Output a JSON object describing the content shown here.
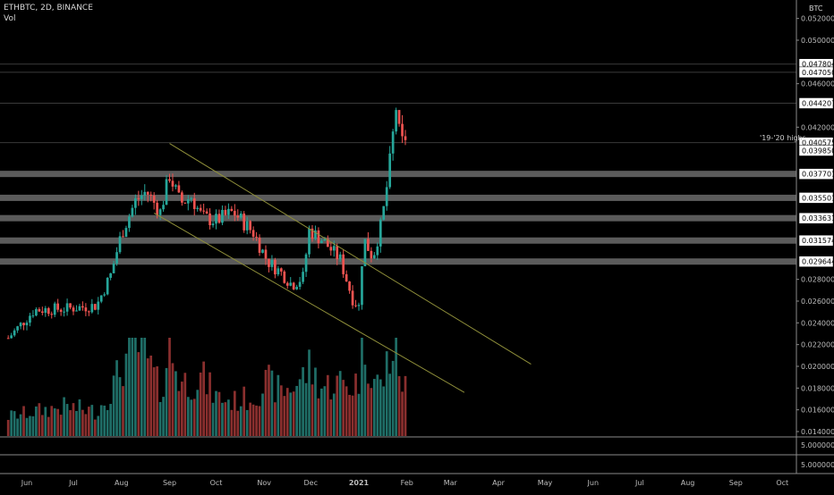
{
  "header": {
    "symbol_line": "ETHBTC, 2D, BINANCE",
    "volume_label": "Vol"
  },
  "colors": {
    "up": "#26a69a",
    "down": "#ef5350",
    "channel": "#8f8f3a",
    "level_band": "#6b6b6b",
    "background": "#000000"
  },
  "price_axis": {
    "currency": "BTC",
    "ticks": [
      "0.05200000",
      "0.05000000",
      "0.04600000",
      "0.04200000",
      "0.02800000",
      "0.02600000",
      "0.02400000",
      "0.02200000",
      "0.02000000",
      "0.01800000",
      "0.01600000",
      "0.01400000"
    ],
    "tick_values": [
      0.052,
      0.05,
      0.046,
      0.042,
      0.028,
      0.026,
      0.024,
      0.022,
      0.02,
      0.018,
      0.016,
      0.014
    ],
    "boxed_levels": [
      "0.04780400",
      "0.04705000",
      "0.04420700",
      "0.04057500",
      "0.03985000",
      "0.03770100",
      "0.03550100",
      "0.03363100",
      "0.03157400",
      "0.02964400"
    ],
    "boxed_values": [
      0.047804,
      0.04705,
      0.044207,
      0.040575,
      0.03985,
      0.037701,
      0.035501,
      0.033631,
      0.031574,
      0.029644
    ],
    "gray_bands": [
      0.0377,
      0.0355,
      0.03363,
      0.03157,
      0.02964
    ],
    "thin_lines": [
      0.047804,
      0.04705,
      0.044207,
      0.040575
    ],
    "lower_pane_ticks": [
      "5.00000000",
      "5.00000000"
    ]
  },
  "annotation": {
    "text": "'19-'20 highs"
  },
  "time_axis": {
    "labels": [
      "Jun",
      "Jul",
      "Aug",
      "Sep",
      "Oct",
      "Nov",
      "Dec",
      "2021",
      "Feb",
      "Mar",
      "Apr",
      "May",
      "Jun",
      "Jul",
      "Aug",
      "Sep",
      "Oct"
    ],
    "bold_label": "2021"
  },
  "chart_data": {
    "type": "candlestick",
    "symbol": "ETHBTC",
    "interval": "2D",
    "exchange": "BINANCE",
    "ylim": [
      0.0135,
      0.0535
    ],
    "log_scale": false,
    "grid": false,
    "channel": {
      "upper": [
        [
          "2020-09-01",
          0.0405
        ],
        [
          "2021-04-22",
          0.0202
        ]
      ],
      "lower": [
        [
          "2020-08-22",
          0.0341
        ],
        [
          "2021-03-10",
          0.0176
        ]
      ]
    },
    "anchors": [
      [
        "2020-05-20",
        0.0226,
        0.2
      ],
      [
        "2020-06-06",
        0.0252,
        0.25
      ],
      [
        "2020-06-26",
        0.0253,
        0.3
      ],
      [
        "2020-07-16",
        0.0256,
        0.25
      ],
      [
        "2020-07-25",
        0.0284,
        0.45
      ],
      [
        "2020-08-01",
        0.0322,
        0.7
      ],
      [
        "2020-08-10",
        0.0352,
        0.95
      ],
      [
        "2020-08-17",
        0.0361,
        0.8
      ],
      [
        "2020-08-26",
        0.0342,
        0.45
      ],
      [
        "2020-09-01",
        0.0376,
        0.9
      ],
      [
        "2020-09-08",
        0.035,
        0.55
      ],
      [
        "2020-09-15",
        0.0356,
        0.55
      ],
      [
        "2020-09-22",
        0.0337,
        0.6
      ],
      [
        "2020-10-01",
        0.0334,
        0.4
      ],
      [
        "2020-10-12",
        0.0342,
        0.35
      ],
      [
        "2020-10-25",
        0.0323,
        0.4
      ],
      [
        "2020-11-03",
        0.0297,
        0.55
      ],
      [
        "2020-11-12",
        0.0286,
        0.45
      ],
      [
        "2020-11-19",
        0.0275,
        0.5
      ],
      [
        "2020-11-26",
        0.0282,
        0.6
      ],
      [
        "2020-11-30",
        0.0325,
        0.7
      ],
      [
        "2020-12-08",
        0.0317,
        0.5
      ],
      [
        "2020-12-20",
        0.0298,
        0.55
      ],
      [
        "2020-12-28",
        0.0262,
        0.5
      ],
      [
        "2021-01-01",
        0.0255,
        0.6
      ],
      [
        "2021-01-04",
        0.0318,
        1.0
      ],
      [
        "2021-01-10",
        0.03,
        0.6
      ],
      [
        "2021-01-16",
        0.0334,
        0.5
      ],
      [
        "2021-01-20",
        0.0375,
        0.8
      ],
      [
        "2021-01-25",
        0.0438,
        0.9
      ],
      [
        "2021-01-28",
        0.0403,
        0.6
      ],
      [
        "2021-01-31",
        0.0411,
        0.5
      ]
    ],
    "last_date": "2021-01-31"
  }
}
